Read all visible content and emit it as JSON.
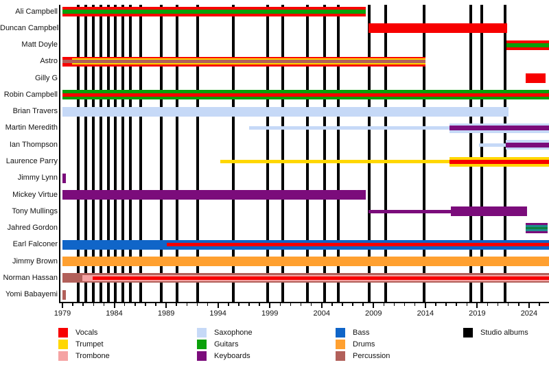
{
  "colors": {
    "vocals": "#F70000",
    "trumpet": "#FFD700",
    "trombone": "#F5A3A3",
    "saxophone": "#C6D9F7",
    "guitars": "#0AA00A",
    "keyboards": "#7B0C7B",
    "bass": "#1065C8",
    "drums": "#FFA030",
    "percussion": "#B2605A",
    "studio_albums": "#000000",
    "accent_teal": "#1F8C8C",
    "accent_green": "#0D8040",
    "axis": "#000000"
  },
  "chart_data": {
    "type": "timeline",
    "title": "",
    "x_axis": {
      "range_start": 1979,
      "range_end": 2025.9,
      "minor_tick_every_years": 1,
      "tick_label_years": [
        1979,
        1984,
        1989,
        1994,
        1999,
        2004,
        2009,
        2014,
        2019,
        2024
      ]
    },
    "studio_album_years": [
      1980.52,
      1981.25,
      1981.98,
      1982.71,
      1983.43,
      1984.1,
      1984.82,
      1985.55,
      1986.54,
      1988.53,
      1990.05,
      1992.04,
      1995.48,
      1998.79,
      2000.24,
      2002.63,
      2004.28,
      2005.6,
      2008.58,
      2010.17,
      2013.88,
      2018.38,
      2019.44,
      2021.69
    ],
    "members": [
      {
        "name": "Ali Campbell",
        "instruments": "vocals, guitars",
        "bars": [
          {
            "from": 1979,
            "to": 2008.25,
            "h": 14,
            "color": "vocals"
          },
          {
            "from": 1979,
            "to": 2008.25,
            "h": 6,
            "color": "guitars"
          }
        ]
      },
      {
        "name": "Duncan Campbell",
        "instruments": "vocals",
        "bars": [
          {
            "from": 2008.5,
            "to": 2021.9,
            "h": 14,
            "color": "vocals"
          }
        ]
      },
      {
        "name": "Matt Doyle",
        "instruments": "vocals, guitars",
        "bars": [
          {
            "from": 2021.8,
            "to": 2025.9,
            "h": 14,
            "color": "vocals"
          },
          {
            "from": 2021.8,
            "to": 2025.9,
            "h": 6,
            "color": "guitars"
          }
        ]
      },
      {
        "name": "Astro",
        "instruments": "vocals, trumpet, percussion",
        "bars": [
          {
            "from": 1979,
            "to": 2014,
            "h": 14,
            "color": "vocals"
          },
          {
            "from": 1979.93,
            "to": 2014,
            "h": 9,
            "color": "trumpet"
          },
          {
            "from": 1979,
            "to": 2014,
            "h": 5,
            "color": "percussion"
          }
        ]
      },
      {
        "name": "Gilly G",
        "instruments": "vocals",
        "bars": [
          {
            "from": 2023.7,
            "to": 2025.6,
            "h": 14,
            "color": "vocals"
          }
        ]
      },
      {
        "name": "Robin Campbell",
        "instruments": "guitars, vocals",
        "bars": [
          {
            "from": 1979,
            "to": 2025.9,
            "h": 14,
            "color": "guitars"
          },
          {
            "from": 1979,
            "to": 2025.9,
            "h": 5,
            "color": "vocals"
          }
        ]
      },
      {
        "name": "Brian Travers",
        "instruments": "saxophone",
        "bars": [
          {
            "from": 1979,
            "to": 2022,
            "h": 14,
            "color": "saxophone"
          }
        ]
      },
      {
        "name": "Martin Meredith",
        "instruments": "saxophone, keyboards",
        "bars": [
          {
            "from": 1997,
            "to": 2016.3,
            "h": 5,
            "color": "saxophone"
          },
          {
            "from": 2016.3,
            "to": 2025.9,
            "h": 14,
            "color": "saxophone"
          },
          {
            "from": 2016.3,
            "to": 2025.9,
            "h": 7,
            "color": "keyboards"
          }
        ]
      },
      {
        "name": "Ian Thompson",
        "instruments": "saxophone, keyboards",
        "bars": [
          {
            "from": 2019.2,
            "to": 2021.75,
            "h": 5,
            "color": "saxophone"
          },
          {
            "from": 2021.75,
            "to": 2025.9,
            "h": 14,
            "color": "saxophone"
          },
          {
            "from": 2021.75,
            "to": 2025.9,
            "h": 7,
            "color": "keyboards"
          }
        ]
      },
      {
        "name": "Laurence Parry",
        "instruments": "trumpet, vocals",
        "bars": [
          {
            "from": 1994.2,
            "to": 2016.3,
            "h": 5,
            "color": "trumpet"
          },
          {
            "from": 2016.3,
            "to": 2025.9,
            "h": 14,
            "color": "trumpet"
          },
          {
            "from": 2016.3,
            "to": 2025.9,
            "h": 6,
            "color": "vocals"
          }
        ]
      },
      {
        "name": "Jimmy Lynn",
        "instruments": "keyboards",
        "bars": [
          {
            "from": 1979,
            "to": 1979.3,
            "h": 14,
            "color": "keyboards"
          }
        ]
      },
      {
        "name": "Mickey Virtue",
        "instruments": "keyboards",
        "bars": [
          {
            "from": 1979,
            "to": 2008.25,
            "h": 14,
            "color": "keyboards"
          }
        ]
      },
      {
        "name": "Tony Mullings",
        "instruments": "keyboards",
        "bars": [
          {
            "from": 2008.5,
            "to": 2016.45,
            "h": 5,
            "color": "keyboards"
          },
          {
            "from": 2016.45,
            "to": 2023.8,
            "h": 14,
            "color": "keyboards"
          }
        ]
      },
      {
        "name": "Jahred Gordon",
        "instruments": "keyboards",
        "bars": [
          {
            "from": 2023.65,
            "to": 2025.8,
            "h": 15,
            "color": "keyboards"
          },
          {
            "from": 2023.65,
            "to": 2025.8,
            "h": 9,
            "color": "accent_teal"
          },
          {
            "from": 2023.65,
            "to": 2025.8,
            "h": 3,
            "color": "accent_green"
          }
        ]
      },
      {
        "name": "Earl Falconer",
        "instruments": "bass, vocals",
        "bars": [
          {
            "from": 1979,
            "to": 2025.9,
            "h": 14,
            "color": "bass"
          },
          {
            "from": 1989.05,
            "to": 2025.9,
            "h": 5,
            "color": "vocals"
          }
        ]
      },
      {
        "name": "Jimmy Brown",
        "instruments": "drums",
        "bars": [
          {
            "from": 1979,
            "to": 2025.9,
            "h": 14,
            "color": "drums"
          }
        ]
      },
      {
        "name": "Norman Hassan",
        "instruments": "percussion, trombone, vocals",
        "bars": [
          {
            "from": 1979,
            "to": 2025.9,
            "h": 14,
            "color": "percussion"
          },
          {
            "from": 1980.9,
            "to": 2025.9,
            "h": 9,
            "color": "trombone"
          },
          {
            "from": 1981.9,
            "to": 2025.9,
            "h": 5,
            "color": "vocals"
          }
        ]
      },
      {
        "name": "Yomi Babayemi",
        "instruments": "percussion",
        "bars": [
          {
            "from": 1979,
            "to": 1979.3,
            "h": 14,
            "color": "percussion"
          }
        ]
      }
    ],
    "legend": [
      {
        "label": "Vocals",
        "color": "vocals",
        "col": 0,
        "row": 0
      },
      {
        "label": "Trumpet",
        "color": "trumpet",
        "col": 0,
        "row": 1
      },
      {
        "label": "Trombone",
        "color": "trombone",
        "col": 0,
        "row": 2
      },
      {
        "label": "Saxophone",
        "color": "saxophone",
        "col": 1,
        "row": 0
      },
      {
        "label": "Guitars",
        "color": "guitars",
        "col": 1,
        "row": 1
      },
      {
        "label": "Keyboards",
        "color": "keyboards",
        "col": 1,
        "row": 2
      },
      {
        "label": "Bass",
        "color": "bass",
        "col": 2,
        "row": 0
      },
      {
        "label": "Drums",
        "color": "drums",
        "col": 2,
        "row": 1
      },
      {
        "label": "Percussion",
        "color": "percussion",
        "col": 2,
        "row": 2
      },
      {
        "label": "Studio albums",
        "color": "studio_albums",
        "col": 3,
        "row": 0
      }
    ]
  }
}
